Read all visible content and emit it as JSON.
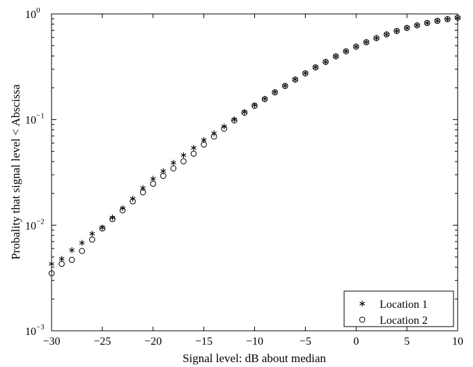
{
  "chart_data": {
    "type": "scatter",
    "title": "",
    "xlabel": "Signal level: dB about median",
    "ylabel": "Probality that signal level < Abscissa",
    "xlim": [
      -30,
      10
    ],
    "ylim": [
      0.001,
      1
    ],
    "yscale": "log",
    "grid": false,
    "legend_position": "bottom-right",
    "x_ticks": [
      -30,
      -25,
      -20,
      -15,
      -10,
      -5,
      0,
      5,
      10
    ],
    "y_ticks": [
      {
        "value": 0.001,
        "base": "10",
        "exp": "−3"
      },
      {
        "value": 0.01,
        "base": "10",
        "exp": "−2"
      },
      {
        "value": 0.1,
        "base": "10",
        "exp": "−1"
      },
      {
        "value": 1,
        "base": "10",
        "exp": "0"
      }
    ],
    "x": [
      -30,
      -29,
      -28,
      -27,
      -26,
      -25,
      -24,
      -23,
      -22,
      -21,
      -20,
      -19,
      -18,
      -17,
      -16,
      -15,
      -14,
      -13,
      -12,
      -11,
      -10,
      -9,
      -8,
      -7,
      -6,
      -5,
      -4,
      -3,
      -2,
      -1,
      0,
      1,
      2,
      3,
      4,
      5,
      6,
      7,
      8,
      9,
      10
    ],
    "series": [
      {
        "name": "Location 1",
        "marker": "asterisk",
        "values": [
          0.0043,
          0.0048,
          0.0058,
          0.0068,
          0.0083,
          0.0095,
          0.0118,
          0.0145,
          0.0178,
          0.0225,
          0.0275,
          0.0325,
          0.039,
          0.046,
          0.054,
          0.064,
          0.074,
          0.086,
          0.1,
          0.118,
          0.137,
          0.157,
          0.182,
          0.209,
          0.24,
          0.275,
          0.313,
          0.352,
          0.397,
          0.443,
          0.49,
          0.54,
          0.59,
          0.64,
          0.69,
          0.737,
          0.78,
          0.822,
          0.86,
          0.893,
          0.92
        ]
      },
      {
        "name": "Location 2",
        "marker": "circle",
        "values": [
          0.0035,
          0.0043,
          0.0047,
          0.0057,
          0.0073,
          0.0093,
          0.0114,
          0.0138,
          0.0168,
          0.0205,
          0.0247,
          0.0293,
          0.0345,
          0.0403,
          0.0475,
          0.058,
          0.069,
          0.082,
          0.098,
          0.116,
          0.135,
          0.156,
          0.181,
          0.208,
          0.239,
          0.274,
          0.312,
          0.352,
          0.397,
          0.443,
          0.49,
          0.54,
          0.59,
          0.64,
          0.69,
          0.737,
          0.78,
          0.822,
          0.86,
          0.893,
          0.92
        ]
      }
    ],
    "colors": {
      "marker": "#000000",
      "axis": "#000000",
      "background": "#ffffff"
    }
  }
}
